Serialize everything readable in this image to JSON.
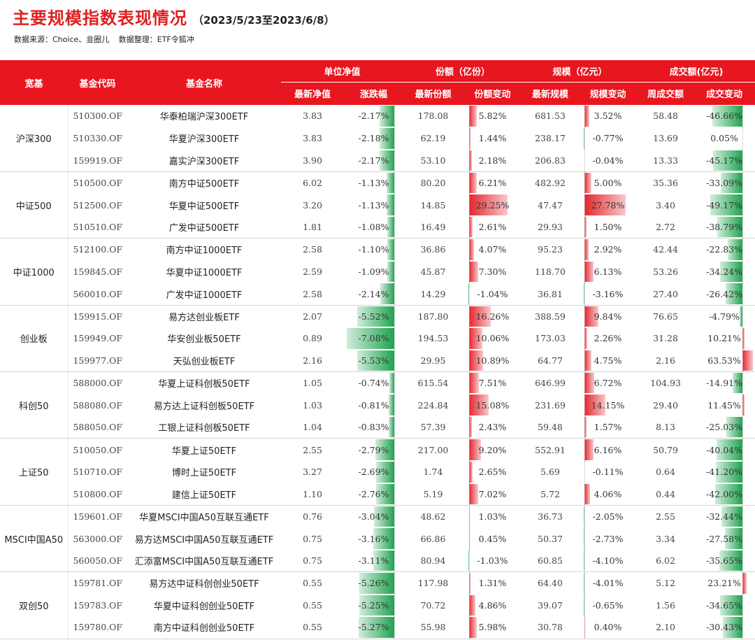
{
  "header": {
    "title": "主要规模指数表现情况",
    "date_range": "（2023/5/23至2023/6/8）",
    "source_label": "数据来源：Choice、韭圈儿",
    "compiler_label": "数据整理：ETF令狐冲"
  },
  "colors": {
    "accent": "#e8161f",
    "positive": "#e3262d",
    "negative": "#1fa34f"
  },
  "columns": {
    "category": "宽基",
    "code": "基金代码",
    "name": "基金名称",
    "group_nav": "单位净值",
    "group_share": "份额（亿份）",
    "group_scale": "规模（亿元）",
    "group_turnover": "成交额(亿元)",
    "nav_latest": "最新净值",
    "nav_change": "涨跌幅",
    "share_latest": "最新份额",
    "share_change": "份额变动",
    "scale_latest": "最新规模",
    "scale_change": "规模变动",
    "turnover_week": "周成交额",
    "turnover_change": "成交变动"
  },
  "groups": [
    {
      "category": "沪深300",
      "rows": [
        {
          "code": "510300.OF",
          "name": "华泰柏瑞沪深300ETF",
          "nav": "3.83",
          "nav_chg": -2.17,
          "share": "178.08",
          "share_chg": 5.82,
          "scale": "681.53",
          "scale_chg": 3.52,
          "turnover": "58.48",
          "turnover_chg": -46.66
        },
        {
          "code": "510330.OF",
          "name": "华夏沪深300ETF",
          "nav": "3.83",
          "nav_chg": -2.18,
          "share": "62.19",
          "share_chg": 1.44,
          "scale": "238.17",
          "scale_chg": -0.77,
          "turnover": "13.69",
          "turnover_chg": 0.05
        },
        {
          "code": "159919.OF",
          "name": "嘉实沪深300ETF",
          "nav": "3.90",
          "nav_chg": -2.17,
          "share": "53.10",
          "share_chg": 2.18,
          "scale": "206.83",
          "scale_chg": -0.04,
          "turnover": "13.33",
          "turnover_chg": -45.17
        }
      ]
    },
    {
      "category": "中证500",
      "rows": [
        {
          "code": "510500.OF",
          "name": "南方中证500ETF",
          "nav": "6.02",
          "nav_chg": -1.13,
          "share": "80.20",
          "share_chg": 6.21,
          "scale": "482.92",
          "scale_chg": 5.0,
          "turnover": "35.36",
          "turnover_chg": -33.09
        },
        {
          "code": "512500.OF",
          "name": "华夏中证500ETF",
          "nav": "3.20",
          "nav_chg": -1.13,
          "share": "14.85",
          "share_chg": 29.25,
          "scale": "47.47",
          "scale_chg": 27.78,
          "turnover": "3.40",
          "turnover_chg": -49.17
        },
        {
          "code": "510510.OF",
          "name": "广发中证500ETF",
          "nav": "1.81",
          "nav_chg": -1.08,
          "share": "16.49",
          "share_chg": 2.61,
          "scale": "29.93",
          "scale_chg": 1.5,
          "turnover": "2.72",
          "turnover_chg": -38.79
        }
      ]
    },
    {
      "category": "中证1000",
      "rows": [
        {
          "code": "512100.OF",
          "name": "南方中证1000ETF",
          "nav": "2.58",
          "nav_chg": -1.1,
          "share": "36.86",
          "share_chg": 4.07,
          "scale": "95.23",
          "scale_chg": 2.92,
          "turnover": "42.44",
          "turnover_chg": -22.83
        },
        {
          "code": "159845.OF",
          "name": "华夏中证1000ETF",
          "nav": "2.59",
          "nav_chg": -1.09,
          "share": "45.87",
          "share_chg": 7.3,
          "scale": "118.70",
          "scale_chg": 6.13,
          "turnover": "53.26",
          "turnover_chg": -34.24
        },
        {
          "code": "560010.OF",
          "name": "广发中证1000ETF",
          "nav": "2.58",
          "nav_chg": -2.14,
          "share": "14.29",
          "share_chg": -1.04,
          "scale": "36.81",
          "scale_chg": -3.16,
          "turnover": "27.40",
          "turnover_chg": -26.42
        }
      ]
    },
    {
      "category": "创业板",
      "rows": [
        {
          "code": "159915.OF",
          "name": "易方达创业板ETF",
          "nav": "2.07",
          "nav_chg": -5.52,
          "share": "187.80",
          "share_chg": 16.26,
          "scale": "388.59",
          "scale_chg": 9.84,
          "turnover": "76.65",
          "turnover_chg": -4.79
        },
        {
          "code": "159949.OF",
          "name": "华安创业板50ETF",
          "nav": "0.89",
          "nav_chg": -7.08,
          "share": "194.53",
          "share_chg": 10.06,
          "scale": "173.03",
          "scale_chg": 2.26,
          "turnover": "31.28",
          "turnover_chg": 10.21
        },
        {
          "code": "159977.OF",
          "name": "天弘创业板ETF",
          "nav": "2.16",
          "nav_chg": -5.53,
          "share": "29.95",
          "share_chg": 10.89,
          "scale": "64.77",
          "scale_chg": 4.75,
          "turnover": "2.16",
          "turnover_chg": 63.53
        }
      ]
    },
    {
      "category": "科创50",
      "rows": [
        {
          "code": "588000.OF",
          "name": "华夏上证科创板50ETF",
          "nav": "1.05",
          "nav_chg": -0.74,
          "share": "615.54",
          "share_chg": 7.51,
          "scale": "646.99",
          "scale_chg": 6.72,
          "turnover": "104.93",
          "turnover_chg": -14.91
        },
        {
          "code": "588080.OF",
          "name": "易方达上证科创板50ETF",
          "nav": "1.03",
          "nav_chg": -0.81,
          "share": "224.84",
          "share_chg": 15.08,
          "scale": "231.69",
          "scale_chg": 14.15,
          "turnover": "29.40",
          "turnover_chg": 11.45
        },
        {
          "code": "588050.OF",
          "name": "工银上证科创板50ETF",
          "nav": "1.04",
          "nav_chg": -0.83,
          "share": "57.39",
          "share_chg": 2.43,
          "scale": "59.48",
          "scale_chg": 1.57,
          "turnover": "8.13",
          "turnover_chg": -25.03
        }
      ]
    },
    {
      "category": "上证50",
      "rows": [
        {
          "code": "510050.OF",
          "name": "华夏上证50ETF",
          "nav": "2.55",
          "nav_chg": -2.79,
          "share": "217.00",
          "share_chg": 9.2,
          "scale": "552.91",
          "scale_chg": 6.16,
          "turnover": "50.79",
          "turnover_chg": -40.04
        },
        {
          "code": "510710.OF",
          "name": "博时上证50ETF",
          "nav": "3.27",
          "nav_chg": -2.69,
          "share": "1.74",
          "share_chg": 2.65,
          "scale": "5.69",
          "scale_chg": -0.11,
          "turnover": "0.64",
          "turnover_chg": -41.2
        },
        {
          "code": "510800.OF",
          "name": "建信上证50ETF",
          "nav": "1.10",
          "nav_chg": -2.76,
          "share": "5.19",
          "share_chg": 7.02,
          "scale": "5.72",
          "scale_chg": 4.06,
          "turnover": "0.44",
          "turnover_chg": -42.0
        }
      ]
    },
    {
      "category": "MSCI中国A50",
      "rows": [
        {
          "code": "159601.OF",
          "name": "华夏MSCI中国A50互联互通ETF",
          "nav": "0.76",
          "nav_chg": -3.04,
          "share": "48.62",
          "share_chg": 1.03,
          "scale": "36.73",
          "scale_chg": -2.05,
          "turnover": "2.55",
          "turnover_chg": -32.44
        },
        {
          "code": "563000.OF",
          "name": "易方达MSCI中国A50互联互通ETF",
          "nav": "0.75",
          "nav_chg": -3.16,
          "share": "66.86",
          "share_chg": 0.45,
          "scale": "50.37",
          "scale_chg": -2.73,
          "turnover": "3.34",
          "turnover_chg": -27.58
        },
        {
          "code": "560050.OF",
          "name": "汇添富MSCI中国A50互联互通ETF",
          "nav": "0.75",
          "nav_chg": -3.11,
          "share": "80.94",
          "share_chg": -1.03,
          "scale": "60.85",
          "scale_chg": -4.1,
          "turnover": "6.02",
          "turnover_chg": -35.65
        }
      ]
    },
    {
      "category": "双创50",
      "rows": [
        {
          "code": "159781.OF",
          "name": "易方达中证科创创业50ETF",
          "nav": "0.55",
          "nav_chg": -5.26,
          "share": "117.98",
          "share_chg": 1.31,
          "scale": "64.40",
          "scale_chg": -4.01,
          "turnover": "5.12",
          "turnover_chg": 23.21
        },
        {
          "code": "159783.OF",
          "name": "华夏中证科创创业50ETF",
          "nav": "0.55",
          "nav_chg": -5.25,
          "share": "70.72",
          "share_chg": 4.86,
          "scale": "39.07",
          "scale_chg": -0.65,
          "turnover": "1.56",
          "turnover_chg": -34.65
        },
        {
          "code": "159780.OF",
          "name": "南方中证科创创业50ETF",
          "nav": "0.55",
          "nav_chg": -5.27,
          "share": "55.98",
          "share_chg": 5.98,
          "scale": "30.78",
          "scale_chg": 0.4,
          "turnover": "2.10",
          "turnover_chg": -30.43
        }
      ]
    }
  ]
}
